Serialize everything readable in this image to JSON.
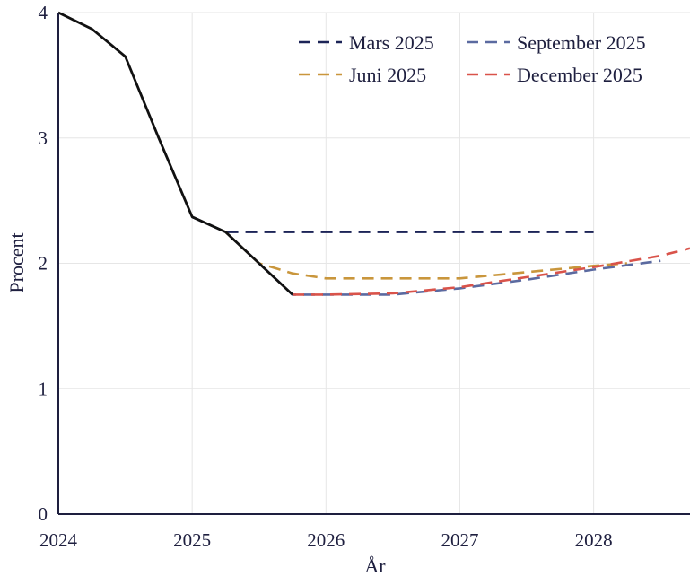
{
  "chart_data": {
    "type": "line",
    "title": "",
    "xlabel": "År",
    "ylabel": "Procent",
    "xlim": [
      2024,
      2028.72
    ],
    "ylim": [
      0,
      4
    ],
    "x_ticks": [
      "2024",
      "2025",
      "2026",
      "2027",
      "2028"
    ],
    "y_ticks": [
      "0",
      "1",
      "2",
      "3",
      "4"
    ],
    "grid": true,
    "legend_position": "top-right",
    "outcome": {
      "color": "#111111",
      "points": [
        [
          2024.0,
          4.0
        ],
        [
          2024.25,
          3.87
        ],
        [
          2024.5,
          3.65
        ],
        [
          2024.75,
          3.0
        ],
        [
          2025.0,
          2.37
        ],
        [
          2025.25,
          2.25
        ],
        [
          2025.5,
          2.0
        ],
        [
          2025.75,
          1.75
        ]
      ]
    },
    "series": [
      {
        "name": "Mars 2025",
        "color": "#1c2457",
        "points": [
          [
            2025.0,
            2.37
          ],
          [
            2025.25,
            2.25
          ],
          [
            2025.5,
            2.25
          ],
          [
            2026.0,
            2.25
          ],
          [
            2027.0,
            2.25
          ],
          [
            2028.0,
            2.25
          ]
        ]
      },
      {
        "name": "Juni 2025",
        "color": "#c9963c",
        "points": [
          [
            2025.25,
            2.25
          ],
          [
            2025.5,
            2.0
          ],
          [
            2025.75,
            1.92
          ],
          [
            2026.0,
            1.88
          ],
          [
            2026.5,
            1.88
          ],
          [
            2027.0,
            1.88
          ],
          [
            2027.5,
            1.93
          ],
          [
            2028.0,
            1.98
          ],
          [
            2028.25,
            2.0
          ]
        ]
      },
      {
        "name": "September 2025",
        "color": "#5b6aa0",
        "points": [
          [
            2025.5,
            2.0
          ],
          [
            2025.75,
            1.75
          ],
          [
            2026.0,
            1.75
          ],
          [
            2026.5,
            1.75
          ],
          [
            2027.0,
            1.8
          ],
          [
            2027.5,
            1.87
          ],
          [
            2028.0,
            1.95
          ],
          [
            2028.5,
            2.02
          ]
        ]
      },
      {
        "name": "December 2025",
        "color": "#d9534a",
        "points": [
          [
            2025.75,
            1.75
          ],
          [
            2026.0,
            1.75
          ],
          [
            2026.5,
            1.76
          ],
          [
            2027.0,
            1.81
          ],
          [
            2027.5,
            1.89
          ],
          [
            2028.0,
            1.97
          ],
          [
            2028.5,
            2.06
          ],
          [
            2028.72,
            2.12
          ]
        ]
      }
    ]
  }
}
